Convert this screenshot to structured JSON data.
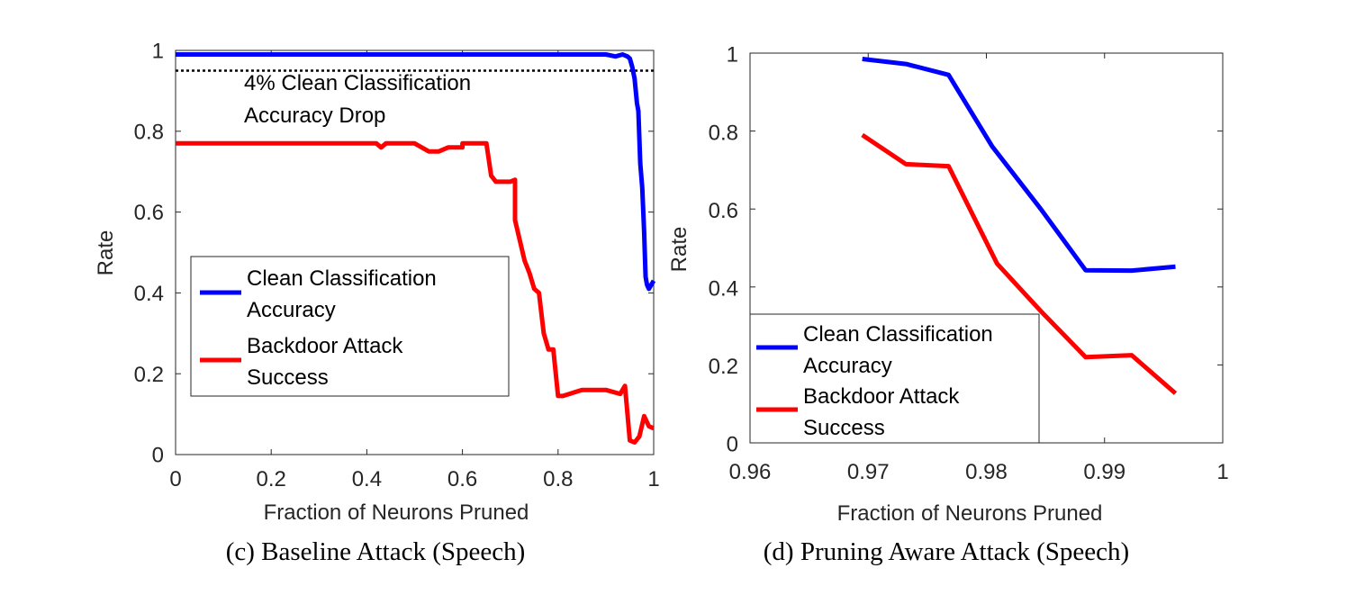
{
  "chart_data": [
    {
      "type": "line",
      "caption": "(c) Baseline Attack (Speech)",
      "xlabel": "Fraction of Neurons Pruned",
      "ylabel": "Rate",
      "xlim": [
        0,
        1
      ],
      "ylim": [
        0,
        1
      ],
      "xticks": [
        "0",
        "0.2",
        "0.4",
        "0.6",
        "0.8",
        "1"
      ],
      "yticks": [
        "0",
        "0.2",
        "0.4",
        "0.6",
        "0.8",
        "1"
      ],
      "grid": false,
      "legend_position": "lower-left",
      "annotation": {
        "lines": [
          "4% Clean Classification",
          "Accuracy Drop"
        ],
        "threshold": 0.95
      },
      "series": [
        {
          "name_lines": [
            "Clean Classification",
            "Accuracy"
          ],
          "color": "#0000ff",
          "x": [
            0,
            0.3,
            0.5,
            0.6,
            0.7,
            0.8,
            0.85,
            0.9,
            0.92,
            0.935,
            0.945,
            0.95,
            0.955,
            0.96,
            0.965,
            0.968,
            0.972,
            0.976,
            0.98,
            0.983,
            0.986,
            0.99,
            0.995,
            1.0
          ],
          "y": [
            0.99,
            0.99,
            0.99,
            0.99,
            0.99,
            0.99,
            0.99,
            0.99,
            0.985,
            0.99,
            0.985,
            0.98,
            0.96,
            0.93,
            0.87,
            0.85,
            0.72,
            0.66,
            0.55,
            0.44,
            0.42,
            0.41,
            0.42,
            0.43
          ]
        },
        {
          "name_lines": [
            "Backdoor Attack",
            "Success"
          ],
          "color": "#ff0000",
          "x": [
            0,
            0.42,
            0.43,
            0.44,
            0.5,
            0.53,
            0.55,
            0.57,
            0.6,
            0.6,
            0.62,
            0.65,
            0.66,
            0.67,
            0.7,
            0.71,
            0.71,
            0.72,
            0.73,
            0.74,
            0.75,
            0.76,
            0.77,
            0.78,
            0.79,
            0.8,
            0.81,
            0.85,
            0.88,
            0.9,
            0.93,
            0.94,
            0.95,
            0.96,
            0.97,
            0.98,
            0.99,
            1.0
          ],
          "y": [
            0.77,
            0.77,
            0.76,
            0.77,
            0.77,
            0.75,
            0.75,
            0.76,
            0.76,
            0.77,
            0.77,
            0.77,
            0.69,
            0.675,
            0.675,
            0.68,
            0.58,
            0.53,
            0.48,
            0.45,
            0.41,
            0.4,
            0.3,
            0.26,
            0.26,
            0.145,
            0.145,
            0.16,
            0.16,
            0.16,
            0.15,
            0.17,
            0.035,
            0.03,
            0.045,
            0.095,
            0.07,
            0.065
          ]
        }
      ]
    },
    {
      "type": "line",
      "caption": "(d) Pruning Aware Attack (Speech)",
      "xlabel": "Fraction of Neurons Pruned",
      "ylabel": "Rate",
      "xlim": [
        0.96,
        1
      ],
      "ylim": [
        0,
        1
      ],
      "xticks": [
        "0.96",
        "0.97",
        "0.98",
        "0.99",
        "1"
      ],
      "yticks": [
        "0",
        "0.2",
        "0.4",
        "0.6",
        "0.8",
        "1"
      ],
      "grid": false,
      "legend_position": "lower-left",
      "series": [
        {
          "name_lines": [
            "Clean Classification",
            "Accuracy"
          ],
          "color": "#0000ff",
          "x": [
            0.9695,
            0.9732,
            0.9768,
            0.9805,
            0.9846,
            0.9884,
            0.9923,
            0.996
          ],
          "y": [
            0.985,
            0.972,
            0.944,
            0.76,
            0.6,
            0.443,
            0.442,
            0.452
          ]
        },
        {
          "name_lines": [
            "Backdoor Attack",
            "Success"
          ],
          "color": "#ff0000",
          "x": [
            0.9695,
            0.9732,
            0.9768,
            0.9809,
            0.9846,
            0.9884,
            0.9923,
            0.996
          ],
          "y": [
            0.79,
            0.715,
            0.71,
            0.46,
            0.338,
            0.22,
            0.225,
            0.127
          ]
        }
      ]
    }
  ]
}
